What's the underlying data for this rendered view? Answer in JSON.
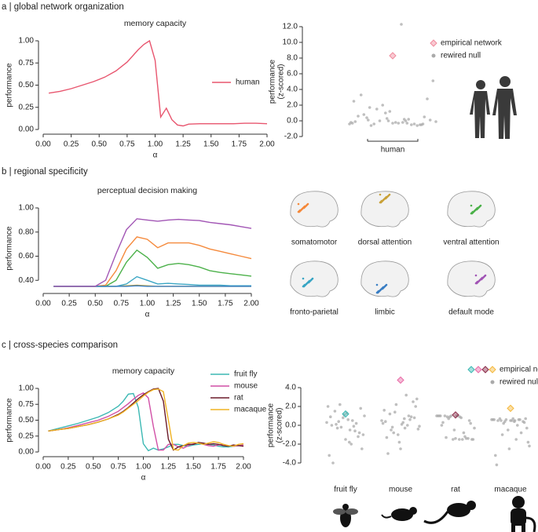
{
  "panel_labels": [
    "a | global network organization",
    "b | regional specificity",
    "c | cross-species comparison"
  ],
  "chart_data": [
    {
      "type": "line",
      "title": "memory capacity",
      "xlabel": "α",
      "ylabel": "performance",
      "x": [
        0.05,
        0.15,
        0.25,
        0.35,
        0.45,
        0.55,
        0.65,
        0.75,
        0.85,
        0.9,
        0.95,
        1.0,
        1.05,
        1.1,
        1.15,
        1.2,
        1.25,
        1.3,
        1.4,
        1.5,
        1.6,
        1.7,
        1.8,
        1.9,
        2.0
      ],
      "series": [
        {
          "name": "human",
          "color": "#e8566f",
          "values": [
            0.41,
            0.43,
            0.46,
            0.5,
            0.54,
            0.59,
            0.66,
            0.76,
            0.9,
            0.96,
            1.0,
            0.78,
            0.14,
            0.24,
            0.11,
            0.05,
            0.04,
            0.06,
            0.065,
            0.065,
            0.065,
            0.065,
            0.07,
            0.07,
            0.065
          ]
        }
      ],
      "xlim": [
        0,
        2
      ],
      "ylim": [
        0,
        1
      ],
      "xticks": [
        {
          "value": 0,
          "label": "0.00"
        },
        0.25,
        {
          "value": 0.5,
          "label": "0.50"
        },
        0.75,
        {
          "value": 1,
          "label": "1.00"
        },
        1.25,
        {
          "value": 1.5,
          "label": "1.50"
        },
        1.75,
        {
          "value": 2,
          "label": "2.00"
        }
      ],
      "yticks": [
        {
          "value": 0,
          "label": "0.00"
        },
        0.25,
        {
          "value": 0.5,
          "label": "0.50"
        },
        0.75,
        {
          "value": 1,
          "label": "1.00"
        }
      ]
    },
    {
      "type": "strip",
      "ylabel": [
        "performance",
        "(z-scored)"
      ],
      "categories": [
        "human"
      ],
      "empirical": {
        "name": "empirical network",
        "values": [
          8.3
        ],
        "colors": [
          "#f08a9c"
        ]
      },
      "null": {
        "name": "rewired null",
        "color": "#aaaaaa",
        "values": [
          [
            -0.4,
            -0.2,
            0.1,
            -0.5,
            0.3,
            -0.3,
            0.0,
            -0.6,
            0.5,
            1.2,
            -0.1,
            0.2,
            -0.4,
            2.8,
            -0.3,
            0.6,
            -0.5,
            1.5,
            0.1,
            -0.2,
            3.3,
            -0.4,
            0.0,
            5.1,
            -0.3,
            0.8,
            -0.6,
            2.0,
            -0.1,
            12.3,
            0.4,
            -0.5,
            1.0,
            -0.2,
            0.2,
            1.7,
            -0.4,
            0.0,
            2.5,
            -0.3
          ]
        ]
      },
      "ylim": [
        -2,
        12.5
      ],
      "yticks": [
        {
          "value": -2,
          "label": "-2.0"
        },
        {
          "value": 0,
          "label": "0.0"
        },
        {
          "value": 2,
          "label": "2.0"
        },
        {
          "value": 4,
          "label": "4.0"
        },
        {
          "value": 6,
          "label": "6.0"
        },
        {
          "value": 8,
          "label": "8.0"
        },
        {
          "value": 10,
          "label": "10.0"
        },
        {
          "value": 12,
          "label": "12.0"
        }
      ]
    },
    {
      "type": "line",
      "title": "perceptual decision making",
      "xlabel": "α",
      "ylabel": "performance",
      "x": [
        0.1,
        0.2,
        0.3,
        0.4,
        0.5,
        0.6,
        0.7,
        0.8,
        0.9,
        1.0,
        1.1,
        1.2,
        1.3,
        1.4,
        1.5,
        1.6,
        1.7,
        1.8,
        1.9,
        2.0
      ],
      "series": [
        {
          "name": "somatomotor",
          "color": "#f58a3c",
          "values": [
            0.35,
            0.35,
            0.35,
            0.35,
            0.35,
            0.36,
            0.48,
            0.66,
            0.76,
            0.74,
            0.67,
            0.71,
            0.71,
            0.71,
            0.69,
            0.66,
            0.64,
            0.62,
            0.6,
            0.58
          ]
        },
        {
          "name": "dorsal attention",
          "color": "#c9a23a",
          "values": [
            0.35,
            0.35,
            0.35,
            0.35,
            0.35,
            0.35,
            0.35,
            0.355,
            0.36,
            0.355,
            0.35,
            0.35,
            0.35,
            0.35,
            0.35,
            0.35,
            0.35,
            0.35,
            0.35,
            0.35
          ]
        },
        {
          "name": "ventral attention",
          "color": "#4cb14a",
          "values": [
            0.35,
            0.35,
            0.35,
            0.35,
            0.35,
            0.35,
            0.4,
            0.55,
            0.65,
            0.59,
            0.5,
            0.53,
            0.54,
            0.53,
            0.51,
            0.48,
            0.465,
            0.455,
            0.445,
            0.435
          ]
        },
        {
          "name": "fronto-parietal",
          "color": "#3aa6c4",
          "values": [
            0.35,
            0.35,
            0.35,
            0.35,
            0.35,
            0.35,
            0.35,
            0.37,
            0.43,
            0.4,
            0.37,
            0.375,
            0.37,
            0.365,
            0.36,
            0.36,
            0.36,
            0.355,
            0.355,
            0.355
          ]
        },
        {
          "name": "limbic",
          "color": "#3b7fc4",
          "values": [
            0.35,
            0.35,
            0.35,
            0.35,
            0.35,
            0.35,
            0.35,
            0.35,
            0.355,
            0.35,
            0.35,
            0.35,
            0.35,
            0.35,
            0.35,
            0.35,
            0.35,
            0.35,
            0.35,
            0.35
          ]
        },
        {
          "name": "default mode",
          "color": "#a256b5",
          "values": [
            0.35,
            0.35,
            0.35,
            0.35,
            0.35,
            0.4,
            0.62,
            0.82,
            0.91,
            0.9,
            0.89,
            0.9,
            0.905,
            0.9,
            0.895,
            0.88,
            0.87,
            0.86,
            0.845,
            0.83
          ]
        }
      ],
      "xlim": [
        0,
        2
      ],
      "ylim": [
        0.33,
        1
      ],
      "xticks": [
        {
          "value": 0,
          "label": "0.00"
        },
        0.25,
        {
          "value": 0.5,
          "label": "0.50"
        },
        0.75,
        {
          "value": 1,
          "label": "1.00"
        },
        1.25,
        {
          "value": 1.5,
          "label": "1.50"
        },
        1.75,
        {
          "value": 2,
          "label": "2.00"
        }
      ],
      "yticks": [
        {
          "value": 0.4,
          "label": "0.40"
        },
        {
          "value": 0.6,
          "label": "0.60"
        },
        {
          "value": 0.8,
          "label": "0.80"
        },
        {
          "value": 1,
          "label": "1.00"
        }
      ]
    },
    {
      "type": "line",
      "title": "memory capacity",
      "xlabel": "α",
      "ylabel": "performance",
      "x": [
        0.05,
        0.15,
        0.25,
        0.35,
        0.45,
        0.55,
        0.65,
        0.75,
        0.8,
        0.85,
        0.9,
        0.95,
        1.0,
        1.05,
        1.1,
        1.15,
        1.2,
        1.25,
        1.3,
        1.35,
        1.4,
        1.45,
        1.5,
        1.55,
        1.6,
        1.65,
        1.7,
        1.75,
        1.8,
        1.85,
        1.9,
        1.95,
        2.0
      ],
      "series": [
        {
          "name": "fruit fly",
          "color": "#3bb8b3",
          "values": [
            0.33,
            0.37,
            0.41,
            0.45,
            0.5,
            0.55,
            0.62,
            0.72,
            0.8,
            0.91,
            0.92,
            0.7,
            0.13,
            0.02,
            0.06,
            0.03,
            0.05,
            0.08,
            0.12,
            0.12,
            0.1,
            0.09,
            0.11,
            0.12,
            0.13,
            0.12,
            0.11,
            0.09,
            0.08,
            0.08,
            0.09,
            0.1,
            0.11
          ]
        },
        {
          "name": "mouse",
          "color": "#d14fa6",
          "values": [
            0.33,
            0.35,
            0.38,
            0.42,
            0.46,
            0.5,
            0.56,
            0.64,
            0.7,
            0.76,
            0.83,
            0.89,
            0.93,
            0.85,
            0.4,
            0.03,
            0.03,
            0.12,
            0.12,
            0.08,
            0.06,
            0.1,
            0.13,
            0.14,
            0.12,
            0.1,
            0.09,
            0.11,
            0.12,
            0.1,
            0.09,
            0.1,
            0.11
          ]
        },
        {
          "name": "rat",
          "color": "#6b1a2a",
          "values": [
            0.33,
            0.35,
            0.37,
            0.4,
            0.43,
            0.47,
            0.52,
            0.59,
            0.64,
            0.7,
            0.77,
            0.84,
            0.9,
            0.95,
            0.99,
            1.0,
            0.8,
            0.2,
            0.03,
            0.08,
            0.1,
            0.12,
            0.12,
            0.15,
            0.14,
            0.12,
            0.13,
            0.12,
            0.1,
            0.09,
            0.11,
            0.1,
            0.09
          ]
        },
        {
          "name": "macaque",
          "color": "#f0b323",
          "values": [
            0.33,
            0.35,
            0.37,
            0.4,
            0.43,
            0.47,
            0.52,
            0.58,
            0.63,
            0.69,
            0.75,
            0.81,
            0.88,
            0.94,
            0.98,
            0.99,
            0.95,
            0.5,
            0.04,
            0.03,
            0.1,
            0.14,
            0.15,
            0.14,
            0.12,
            0.14,
            0.16,
            0.15,
            0.12,
            0.1,
            0.09,
            0.12,
            0.13
          ]
        }
      ],
      "xlim": [
        0,
        2
      ],
      "ylim": [
        0,
        1
      ],
      "xticks": [
        {
          "value": 0,
          "label": "0.00"
        },
        0.25,
        {
          "value": 0.5,
          "label": "0.50"
        },
        0.75,
        {
          "value": 1,
          "label": "1.00"
        },
        1.25,
        {
          "value": 1.5,
          "label": "1.50"
        },
        1.75,
        {
          "value": 2,
          "label": "2.00"
        }
      ],
      "yticks": [
        {
          "value": 0,
          "label": "0.00"
        },
        0.25,
        {
          "value": 0.5,
          "label": "0.50"
        },
        0.75,
        {
          "value": 1,
          "label": "1.00"
        }
      ]
    },
    {
      "type": "strip",
      "ylabel": [
        "performance",
        "(z-scored)"
      ],
      "categories": [
        "fruit fly",
        "mouse",
        "rat",
        "macaque"
      ],
      "empirical": {
        "name": "empirical network",
        "values": [
          1.2,
          4.8,
          1.1,
          1.8
        ],
        "colors": [
          "#3bb8b3",
          "#e86aa6",
          "#8a2a48",
          "#f5b83c"
        ]
      },
      "null": {
        "name": "rewired nulls",
        "color": "#aaaaaa",
        "values": [
          [
            0.3,
            -0.5,
            1.5,
            -1.2,
            0.8,
            2.0,
            -2.0,
            0.1,
            -0.8,
            1.1,
            -3.2,
            0.5,
            -0.3,
            1.8,
            -1.5,
            0.9,
            -0.1,
            0.4,
            -2.5,
            1.3,
            0.0,
            -0.6,
            2.2,
            -1.0,
            0.6,
            -4.0,
            0.2,
            -0.2,
            1.0,
            -1.8
          ],
          [
            0.5,
            -0.3,
            1.2,
            2.5,
            -1.0,
            0.2,
            3.2,
            -0.5,
            0.8,
            -1.8,
            1.6,
            0.0,
            -0.2,
            2.0,
            -2.5,
            0.4,
            1.0,
            -0.8,
            2.8,
            0.1,
            -1.3,
            0.6,
            1.4,
            -0.4,
            0.3,
            -3.0,
            0.9,
            2.2,
            -0.1,
            0.7
          ],
          [
            1.0,
            0.9,
            1.0,
            -1.4,
            -1.5,
            1.0,
            0.8,
            -1.3,
            0.5,
            -0.5,
            1.0,
            -1.5,
            0.9,
            0.2,
            -1.4,
            1.0,
            -0.8,
            0.7,
            -1.5,
            1.0,
            0.0,
            -1.2,
            0.9,
            -1.5,
            1.0,
            0.3,
            -1.4,
            1.0,
            -0.3,
            -1.5
          ],
          [
            0.6,
            0.5,
            0.7,
            0.4,
            -0.5,
            0.6,
            -1.5,
            0.5,
            0.3,
            -2.5,
            0.6,
            0.0,
            -1.0,
            0.7,
            0.5,
            -3.2,
            0.6,
            0.2,
            -0.3,
            0.5,
            -4.2,
            0.6,
            0.4,
            -1.8,
            0.7,
            0.5,
            -0.8,
            0.6,
            -2.2,
            0.4
          ]
        ]
      },
      "ylim": [
        -4.5,
        5
      ],
      "yticks": [
        {
          "value": -4,
          "label": "-4.0"
        },
        {
          "value": -2,
          "label": "-2.0"
        },
        {
          "value": 0,
          "label": "0.0"
        },
        {
          "value": 2,
          "label": "2.0"
        },
        {
          "value": 4,
          "label": "4.0"
        }
      ]
    }
  ]
}
